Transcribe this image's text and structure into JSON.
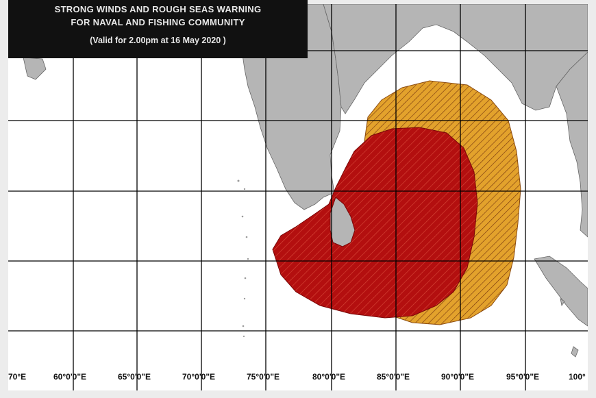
{
  "title": {
    "line1": "STRONG WINDS AND ROUGH SEAS WARNING",
    "line2": "FOR NAVAL AND FISHING COMMUNITY",
    "line3": "(Valid for 2.00pm at 16 May 2020 )"
  },
  "longitude_labels": [
    "70°E",
    "60°0'0\"E",
    "65°0'0\"E",
    "70°0'0\"E",
    "75°0'0\"E",
    "80°0'0\"E",
    "85°0'0\"E",
    "90°0'0\"E",
    "95°0'0\"E",
    "100°"
  ],
  "colors": {
    "land": "#b5b5b5",
    "sea": "#ffffff",
    "high_risk_zone": "#b30f0f",
    "moderate_risk_zone": "#e3a22c",
    "grid": "#000000",
    "title_bg": "#111111"
  }
}
